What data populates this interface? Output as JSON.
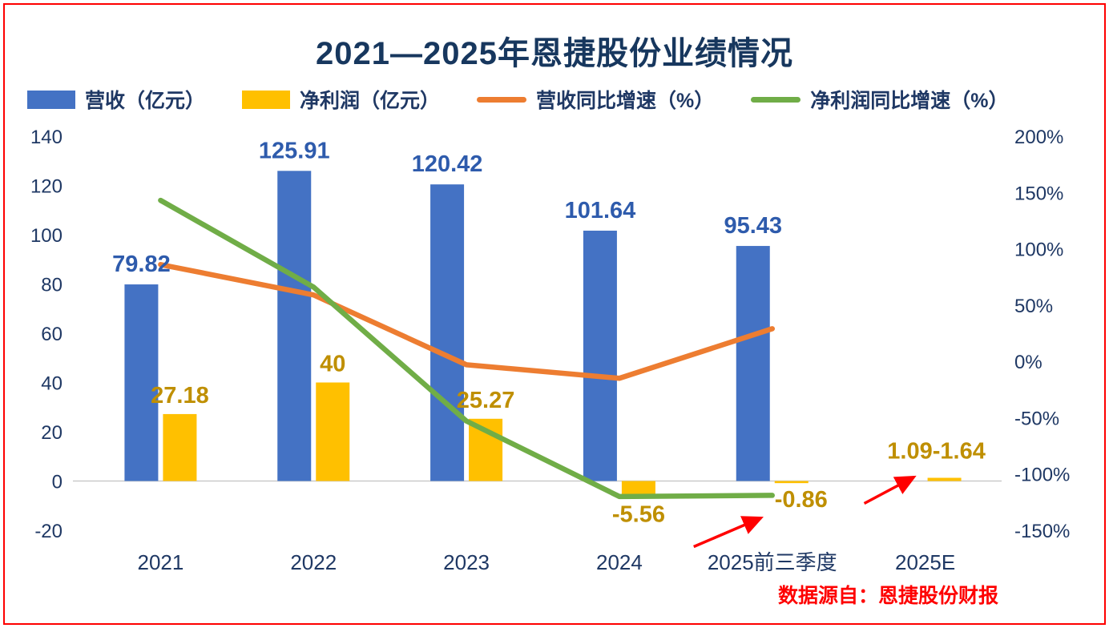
{
  "title": "2021—2025年恩捷股份业绩情况",
  "source_note": "数据源自：恩捷股份财报",
  "legend": [
    {
      "label": "营收（亿元）",
      "type": "bar",
      "color": "#4472c4"
    },
    {
      "label": "净利润（亿元）",
      "type": "bar",
      "color": "#ffc000"
    },
    {
      "label": "营收同比增速（%）",
      "type": "line",
      "color": "#ed7d31"
    },
    {
      "label": "净利润同比增速（%）",
      "type": "line",
      "color": "#70ad47"
    }
  ],
  "chart_data": {
    "type": "bar",
    "title": "2021—2025年恩捷股份业绩情况",
    "categories": [
      "2021",
      "2022",
      "2023",
      "2024",
      "2025前三季度",
      "2025E"
    ],
    "series": [
      {
        "name": "营收（亿元）",
        "type": "bar",
        "axis": "left",
        "color": "#4472c4",
        "values": [
          79.82,
          125.91,
          120.42,
          101.64,
          95.43,
          null
        ],
        "labels": [
          "79.82",
          "125.91",
          "120.42",
          "101.64",
          "95.43",
          ""
        ]
      },
      {
        "name": "净利润（亿元）",
        "type": "bar",
        "axis": "left",
        "color": "#ffc000",
        "values": [
          27.18,
          40,
          25.27,
          -5.56,
          -0.86,
          1.3
        ],
        "labels": [
          "27.18",
          "40",
          "25.27",
          "-5.56",
          "-0.86",
          "1.09-1.64"
        ]
      },
      {
        "name": "营收同比增速（%）",
        "type": "line",
        "axis": "right",
        "color": "#ed7d31",
        "values": [
          86,
          59,
          -3,
          -15,
          29,
          null
        ]
      },
      {
        "name": "净利润同比增速（%）",
        "type": "line",
        "axis": "right",
        "color": "#70ad47",
        "values": [
          143,
          66,
          -53,
          -120,
          -119,
          null
        ]
      }
    ],
    "left_axis": {
      "min": -20,
      "max": 140,
      "step": 20,
      "ticks": [
        "-20",
        "0",
        "20",
        "40",
        "60",
        "80",
        "100",
        "120",
        "140"
      ]
    },
    "right_axis": {
      "min": -150,
      "max": 200,
      "step": 50,
      "ticks": [
        "-150%",
        "-100%",
        "-50%",
        "0%",
        "50%",
        "100%",
        "150%",
        "200%"
      ]
    },
    "grid": false,
    "legend_position": "top",
    "annotations": {
      "arrows": [
        {
          "color": "#ff0000",
          "points_to": "2025前三季度净利润 -0.86"
        },
        {
          "color": "#ff0000",
          "points_to": "2025E净利润 1.09-1.64"
        }
      ]
    }
  }
}
